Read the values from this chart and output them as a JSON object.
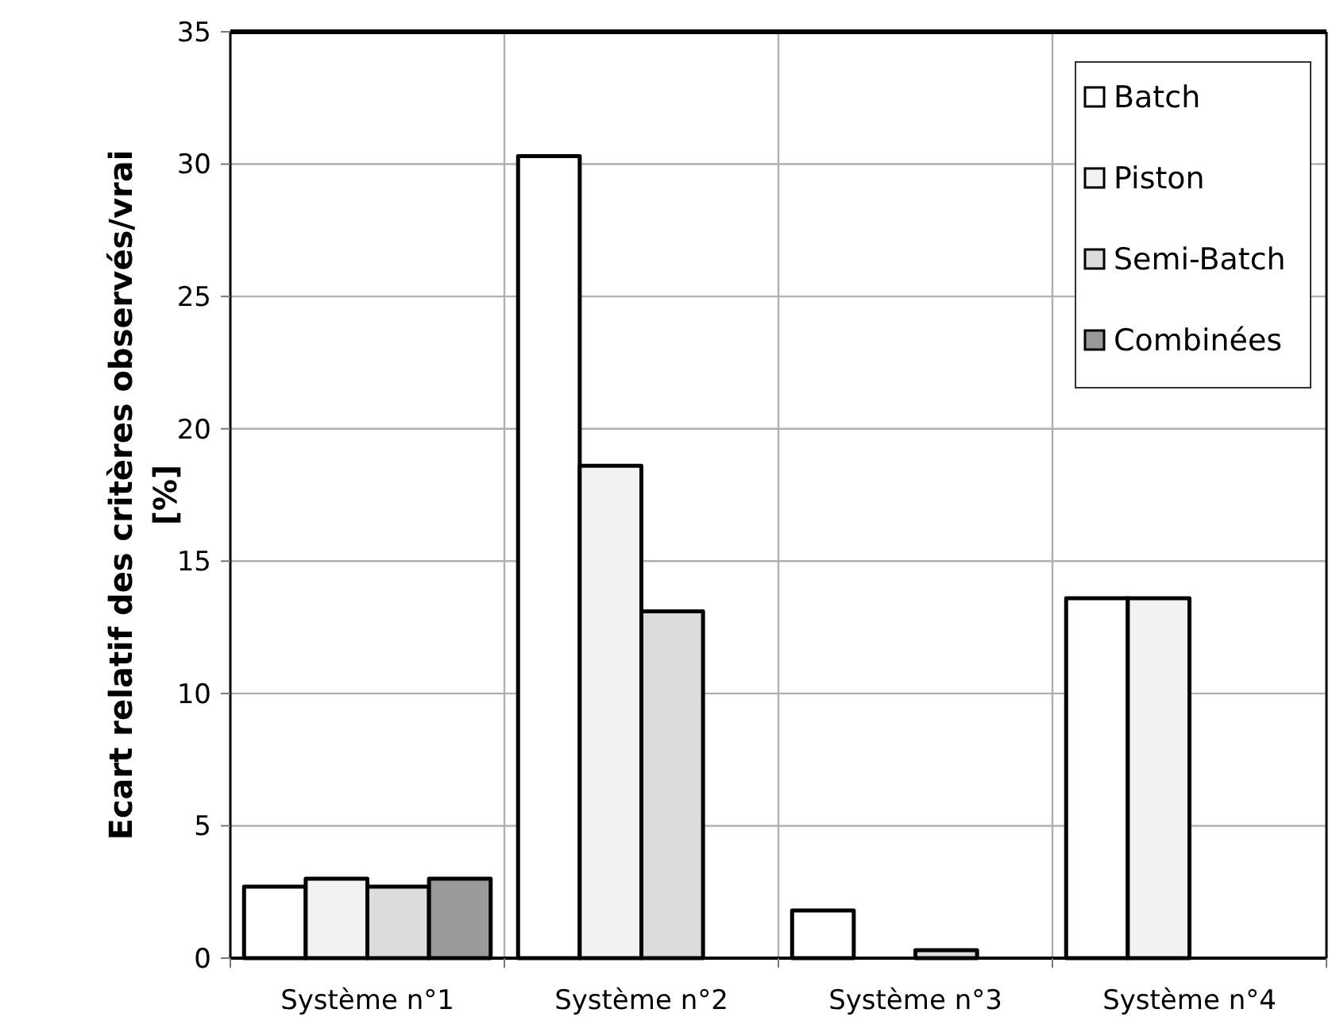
{
  "chart_data": {
    "type": "bar",
    "ylabel": "Ecart relatif des critères  observés/vrai\n[%]",
    "categories": [
      "Système n°1",
      "Système n°2",
      "Système n°3",
      "Système n°4"
    ],
    "series": [
      {
        "name": "Batch",
        "color": "#ffffff",
        "values": [
          2.7,
          30.3,
          1.8,
          13.6
        ]
      },
      {
        "name": "Piston",
        "color": "#f2f2f2",
        "values": [
          3.0,
          18.6,
          null,
          13.6
        ]
      },
      {
        "name": "Semi-Batch",
        "color": "#dcdcdc",
        "values": [
          2.7,
          13.1,
          0.3,
          null
        ]
      },
      {
        "name": "Combinées",
        "color": "#9a9a9a",
        "values": [
          3.0,
          null,
          null,
          null
        ]
      }
    ],
    "ylim": [
      0,
      35
    ],
    "yticks": [
      0,
      5,
      10,
      15,
      20,
      25,
      30,
      35
    ],
    "grid": true,
    "legend": "top right"
  }
}
